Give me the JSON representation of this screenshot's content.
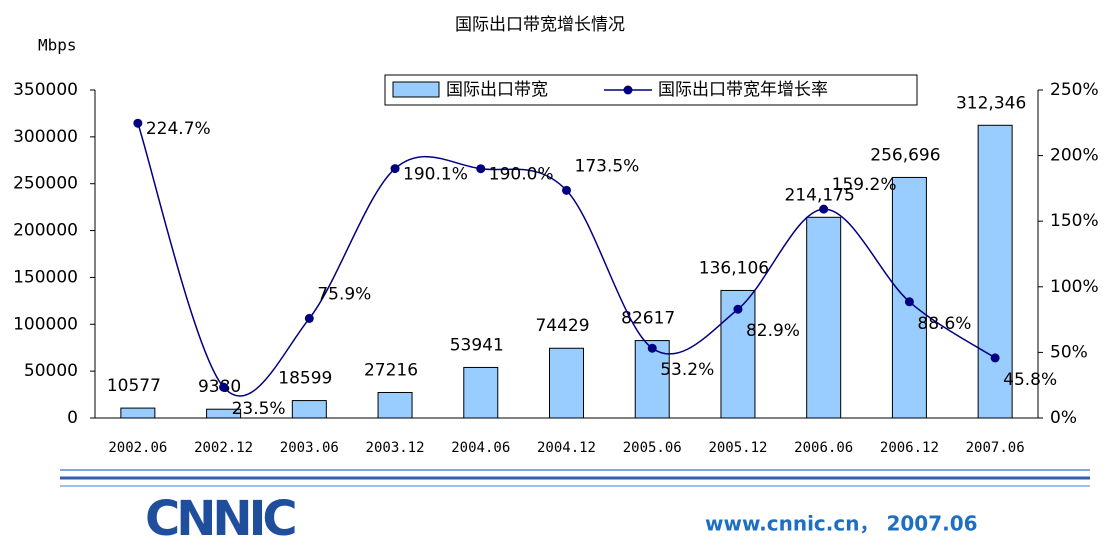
{
  "chart_data": {
    "type": "bar_line",
    "title": "国际出口带宽增长情况",
    "ylabel": "Mbps",
    "categories": [
      "2002.06",
      "2002.12",
      "2003.06",
      "2003.12",
      "2004.06",
      "2004.12",
      "2005.06",
      "2005.12",
      "2006.06",
      "2006.12",
      "2007.06"
    ],
    "series": [
      {
        "name": "国际出口带宽",
        "color": "#99ccff",
        "values": [
          10577,
          9380,
          18599,
          27216,
          53941,
          74429,
          82617,
          136106,
          214175,
          256696,
          312346
        ],
        "value_labels": [
          "10577",
          "9380",
          "18599",
          "27216",
          "53941",
          "74429",
          "82617",
          "136,106",
          "214,175",
          "256,696",
          "312,346"
        ]
      },
      {
        "name": "国际出口带宽年增长率",
        "color": "#000080",
        "axis": "y2",
        "values": [
          224.7,
          23.5,
          75.9,
          190.1,
          190.0,
          173.5,
          53.2,
          82.9,
          159.2,
          88.6,
          45.8
        ],
        "value_labels": [
          "224.7%",
          "23.5%",
          "75.9%",
          "190.1%",
          "190.0%",
          "173.5%",
          "53.2%",
          "82.9%",
          "159.2%",
          "88.6%",
          "45.8%"
        ]
      }
    ],
    "ylim": [
      0,
      350000
    ],
    "yticks": [
      0,
      50000,
      100000,
      150000,
      200000,
      250000,
      300000,
      350000
    ],
    "y2lim": [
      0,
      250
    ],
    "y2ticks": [
      {
        "value": 0,
        "label": "0%"
      },
      {
        "value": 50,
        "label": "50%"
      },
      {
        "value": 100,
        "label": "100%"
      },
      {
        "value": 150,
        "label": "150%"
      },
      {
        "value": 200,
        "label": "200%"
      },
      {
        "value": 250,
        "label": "250%"
      }
    ],
    "legend": "top"
  },
  "footer": {
    "logo": "CNNIC",
    "text": "www.cnnic.cn， 2007.06"
  }
}
